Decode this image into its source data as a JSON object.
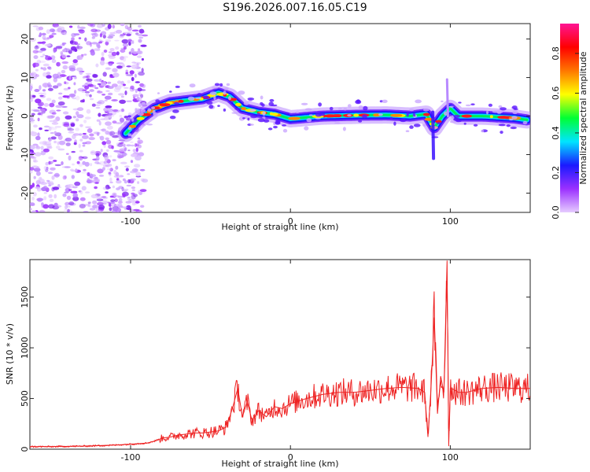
{
  "title": "S196.2026.007.16.05.C19",
  "chart_data": [
    {
      "type": "heatmap",
      "title": "S196.2026.007.16.05.C19",
      "xlabel": "Height of straight line (km)",
      "ylabel": "Frequency (Hz)",
      "xlim": [
        -163,
        150
      ],
      "ylim": [
        -25,
        24
      ],
      "xticks": [
        -100,
        0,
        100
      ],
      "xtick_labels": [
        "-100",
        "0",
        "100"
      ],
      "yticks": [
        -20,
        -10,
        0,
        10,
        20
      ],
      "ytick_labels": [
        "-20",
        "-10",
        "0",
        "10",
        "20"
      ],
      "ridge": {
        "x": [
          -103,
          -95,
          -85,
          -75,
          -65,
          -55,
          -45,
          -38,
          -30,
          -20,
          -10,
          0,
          20,
          40,
          60,
          75,
          85,
          90,
          95,
          100,
          105,
          120,
          140,
          148
        ],
        "y": [
          -4.5,
          -1,
          2,
          3.5,
          4,
          4.5,
          6,
          5,
          2,
          1,
          0.5,
          -0.7,
          0,
          0.2,
          0.3,
          0,
          0.5,
          -3,
          0,
          2,
          0,
          0,
          -0.5,
          -1
        ]
      },
      "colorbar": {
        "label": "Normalized spectral amplitude",
        "range": [
          0.0,
          0.95
        ],
        "ticks": [
          0.0,
          0.2,
          0.4,
          0.6,
          0.8
        ],
        "tick_labels": [
          "0.0",
          "0.2",
          "0.4",
          "0.6",
          "0.8"
        ],
        "colors": [
          "#e6ccff",
          "#9b30ff",
          "#1a1aff",
          "#00e5ff",
          "#00ff33",
          "#ffff00",
          "#ff7700",
          "#ff0000",
          "#ff1493"
        ]
      }
    },
    {
      "type": "line",
      "xlabel": "Height of straight line (km)",
      "ylabel": "SNR (10 * v/v)",
      "xlim": [
        -163,
        150
      ],
      "ylim": [
        0,
        1870
      ],
      "xticks": [
        -100,
        0,
        100
      ],
      "xtick_labels": [
        "-100",
        "0",
        "100"
      ],
      "yticks": [
        0,
        500,
        1000,
        1500
      ],
      "ytick_labels": [
        "0",
        "500",
        "1000",
        "1500"
      ],
      "color": "#ee2222",
      "series": [
        {
          "name": "SNR",
          "x": [
            -163,
            -150,
            -130,
            -110,
            -100,
            -90,
            -85,
            -80,
            -75,
            -70,
            -65,
            -60,
            -55,
            -50,
            -45,
            -40,
            -36,
            -33,
            -30,
            -27,
            -24,
            -20,
            -15,
            -10,
            -5,
            0,
            10,
            20,
            30,
            40,
            50,
            60,
            70,
            80,
            84,
            86,
            88,
            90,
            92,
            94,
            96,
            98,
            99,
            100,
            102,
            105,
            110,
            120,
            130,
            140,
            150
          ],
          "values": [
            25,
            25,
            30,
            40,
            50,
            60,
            80,
            110,
            120,
            140,
            150,
            160,
            160,
            170,
            180,
            220,
            420,
            600,
            320,
            470,
            280,
            380,
            320,
            420,
            400,
            450,
            500,
            540,
            560,
            560,
            580,
            600,
            610,
            600,
            560,
            120,
            620,
            1300,
            350,
            720,
            560,
            1860,
            30,
            600,
            590,
            560,
            560,
            600,
            610,
            600,
            600
          ]
        }
      ]
    }
  ]
}
